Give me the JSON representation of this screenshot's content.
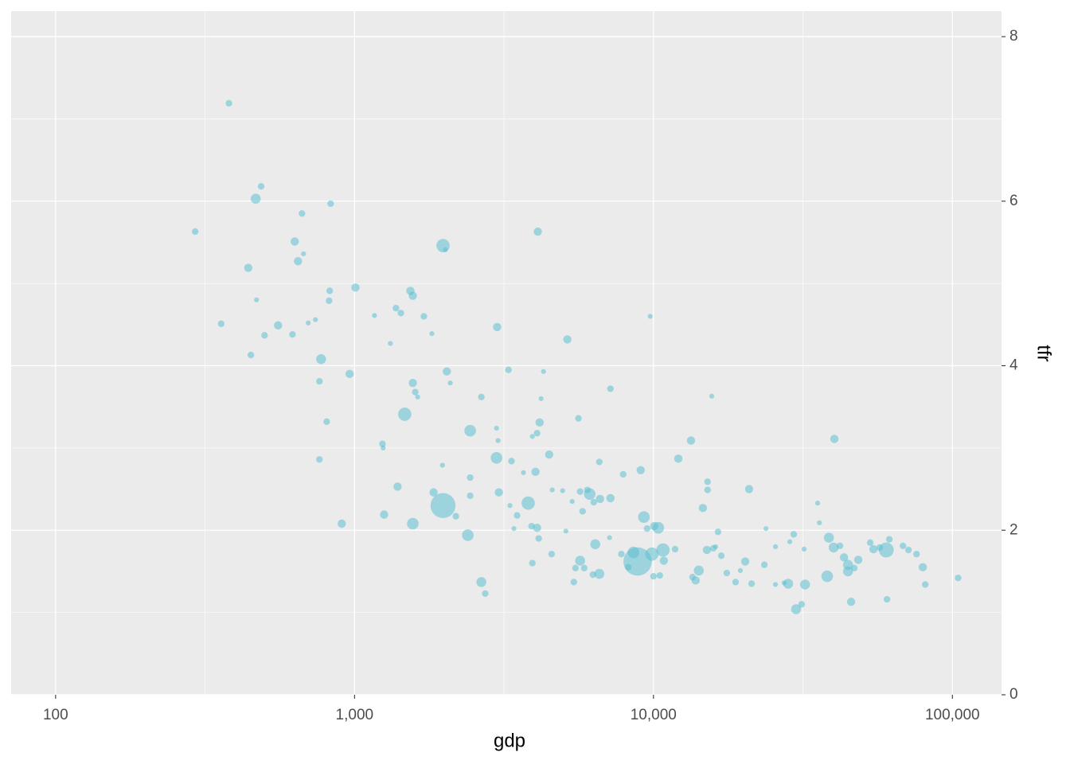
{
  "chart_data": {
    "type": "scatter",
    "x_label": "gdp",
    "y_label": "tfr",
    "log_x": true,
    "grid": true,
    "alpha": 0.55,
    "xlim": [
      71,
      146000
    ],
    "xticks": [
      100,
      {
        "value": 1000,
        "label": "1,000"
      },
      {
        "value": 10000,
        "label": "10,000"
      },
      {
        "value": 100000,
        "label": "100,000"
      }
    ],
    "ylim": [
      0,
      8.31
    ],
    "yticks": [
      0,
      2,
      4,
      6,
      8
    ],
    "x": [
      380,
      293,
      358,
      487,
      467,
      441,
      470,
      450,
      500,
      555,
      667,
      631,
      647,
      675,
      620,
      700,
      740,
      773,
      763,
      763,
      807,
      832,
      826,
      822,
      906,
      963,
      1007,
      1166,
      1240,
      1247,
      1318,
      1376,
      1429,
      1393,
      1256,
      1472,
      1538,
      1567,
      1567,
      1596,
      1626,
      1566,
      1706,
      1814,
      1838,
      1977,
      2013,
      1977,
      1968,
      2036,
      2090,
      2183,
      2393,
      2437,
      2437,
      2437,
      2656,
      2656,
      2736,
      2999,
      2985,
      3020,
      2985,
      3039,
      3273,
      3311,
      3350,
      3414,
      3499,
      3673,
      3810,
      3934,
      3910,
      3934,
      4030,
      4103,
      4080,
      4160,
      4080,
      4131,
      4207,
      4287,
      4478,
      4563,
      4584,
      4966,
      5152,
      5093,
      5346,
      5483,
      5414,
      5610,
      5683,
      5683,
      5794,
      5865,
      6010,
      6120,
      6310,
      6388,
      6270,
      6590,
      6625,
      6590,
      7180,
      7180,
      7130,
      7810,
      7920,
      8230,
      8570,
      8850,
      9060,
      9290,
      9520,
      9750,
      9880,
      10060,
      10380,
      10000,
      10500,
      10760,
      10830,
      11810,
      12110,
      13350,
      13510,
      13840,
      14180,
      14630,
      15170,
      15170,
      15090,
      15660,
      15850,
      16140,
      16440,
      16860,
      17590,
      18820,
      19530,
      20270,
      20890,
      21290,
      23490,
      23790,
      25590,
      25590,
      27370,
      28220,
      28580,
      29460,
      29990,
      31310,
      31910,
      32140,
      35420,
      35890,
      38120,
      38620,
      40060,
      40290,
      42070,
      43390,
      44750,
      44750,
      45830,
      46990,
      48420,
      53090,
      54430,
      57150,
      60070,
      60400,
      61520,
      68340,
      71300,
      75860,
      79620,
      81100,
      104500
    ],
    "series": [
      {
        "color": "#5cc0cf",
        "values": [
          7.19,
          5.63,
          4.51,
          6.18,
          6.03,
          5.19,
          4.8,
          4.13,
          4.37,
          4.49,
          5.85,
          5.51,
          5.27,
          5.36,
          4.38,
          4.52,
          4.56,
          4.08,
          3.81,
          2.86,
          3.32,
          5.97,
          4.91,
          4.79,
          2.08,
          3.9,
          4.95,
          4.61,
          3.05,
          3.0,
          4.27,
          4.7,
          4.64,
          2.53,
          2.19,
          3.41,
          4.91,
          4.85,
          3.79,
          3.68,
          3.62,
          2.08,
          4.6,
          4.39,
          2.46,
          5.46,
          5.41,
          2.3,
          2.79,
          3.93,
          3.79,
          2.17,
          1.94,
          3.21,
          2.64,
          2.42,
          3.62,
          1.37,
          1.23,
          4.47,
          3.24,
          3.09,
          2.88,
          2.46,
          3.95,
          2.3,
          2.84,
          2.02,
          2.18,
          2.7,
          2.33,
          3.14,
          2.05,
          1.6,
          2.71,
          5.63,
          3.18,
          3.31,
          2.03,
          1.9,
          3.6,
          3.93,
          2.92,
          1.71,
          2.49,
          2.48,
          4.32,
          1.99,
          2.35,
          1.54,
          1.37,
          3.36,
          2.47,
          1.63,
          2.23,
          1.54,
          2.49,
          2.44,
          2.34,
          1.83,
          1.46,
          1.47,
          2.38,
          2.83,
          3.72,
          2.39,
          1.91,
          1.71,
          2.68,
          1.55,
          1.73,
          1.62,
          2.73,
          2.16,
          2.02,
          4.6,
          1.71,
          2.05,
          2.03,
          1.44,
          1.45,
          1.76,
          1.63,
          1.77,
          2.87,
          3.09,
          1.43,
          1.39,
          1.51,
          2.27,
          2.59,
          2.49,
          1.76,
          3.63,
          1.78,
          1.8,
          1.98,
          1.69,
          1.48,
          1.37,
          1.51,
          1.62,
          2.5,
          1.35,
          1.58,
          2.02,
          1.8,
          1.34,
          1.36,
          1.35,
          1.86,
          1.95,
          1.04,
          1.1,
          1.77,
          1.34,
          2.33,
          2.09,
          1.44,
          1.91,
          1.79,
          3.11,
          1.81,
          1.67,
          1.5,
          1.58,
          1.13,
          1.54,
          1.64,
          1.85,
          1.77,
          1.79,
          1.76,
          1.16,
          1.89,
          1.81,
          1.76,
          1.71,
          1.55,
          1.34,
          1.42
        ],
        "sizes": [
          3,
          3,
          3,
          3,
          5,
          4,
          2,
          3,
          3,
          4,
          3,
          4,
          4,
          2,
          3,
          2,
          2,
          5,
          3,
          3,
          3,
          3,
          3,
          3,
          4,
          4,
          4,
          2,
          3,
          2,
          2,
          3,
          3,
          4,
          4,
          7,
          4,
          4,
          4,
          3,
          2,
          6,
          3,
          2,
          4,
          7,
          2,
          14,
          2,
          4,
          2,
          3,
          6,
          6,
          3,
          3,
          3,
          5,
          3,
          4,
          2,
          2,
          6,
          4,
          3,
          2,
          3,
          2,
          3,
          2,
          7,
          2,
          3,
          3,
          4,
          4,
          3,
          4,
          4,
          3,
          2,
          2,
          4,
          3,
          2,
          2,
          4,
          2,
          2,
          3,
          3,
          3,
          3,
          5,
          3,
          3,
          3,
          6,
          3,
          5,
          3,
          5,
          4,
          3,
          3,
          4,
          2,
          3,
          3,
          3,
          6,
          16,
          4,
          6,
          3,
          2,
          7,
          4,
          6,
          3,
          3,
          7,
          4,
          3,
          4,
          4,
          3,
          4,
          5,
          4,
          3,
          3,
          4,
          2,
          3,
          2,
          3,
          3,
          3,
          3,
          2,
          4,
          4,
          3,
          3,
          2,
          2,
          2,
          2,
          5,
          2,
          3,
          5,
          3,
          2,
          5,
          2,
          2,
          6,
          5,
          5,
          4,
          3,
          4,
          5,
          5,
          4,
          3,
          4,
          3,
          4,
          3,
          8,
          3,
          3,
          3,
          3,
          3,
          4,
          3,
          3
        ]
      }
    ]
  }
}
